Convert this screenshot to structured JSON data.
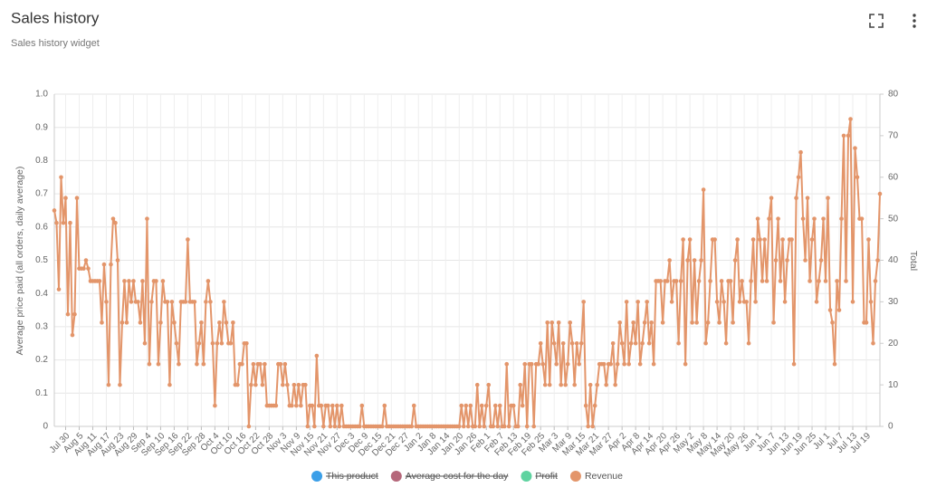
{
  "header": {
    "title": "Sales history",
    "subtitle": "Sales history widget"
  },
  "chart_data": {
    "type": "line",
    "y_label": "Average price paid (all orders, daily average)",
    "y2_label": "Total",
    "ylim": [
      0,
      1
    ],
    "yticks": [
      0,
      0.1,
      0.2,
      0.3,
      0.4,
      0.5,
      0.6,
      0.7,
      0.8,
      0.9,
      {
        "value": 1,
        "label": "1.0"
      }
    ],
    "y2lim": [
      0,
      80
    ],
    "y2ticks": [
      0,
      10,
      20,
      30,
      40,
      50,
      60,
      70,
      80
    ],
    "grid": true,
    "legend": "bottom",
    "categories": [
      null,
      null,
      null,
      null,
      null,
      "Jul 30",
      null,
      null,
      null,
      null,
      null,
      "Aug 5",
      null,
      null,
      null,
      null,
      null,
      "Aug 11",
      null,
      null,
      null,
      null,
      null,
      "Aug 17",
      null,
      null,
      null,
      null,
      null,
      "Aug 23",
      null,
      null,
      null,
      null,
      null,
      "Aug 29",
      null,
      null,
      null,
      null,
      null,
      "Sep 4",
      null,
      null,
      null,
      null,
      null,
      "Sep 10",
      null,
      null,
      null,
      null,
      null,
      "Sep 16",
      null,
      null,
      null,
      null,
      null,
      "Sep 22",
      null,
      null,
      null,
      null,
      null,
      "Sep 28",
      null,
      null,
      null,
      null,
      null,
      "Oct 4",
      null,
      null,
      null,
      null,
      null,
      "Oct 10",
      null,
      null,
      null,
      null,
      null,
      "Oct 16",
      null,
      null,
      null,
      null,
      null,
      "Oct 22",
      null,
      null,
      null,
      null,
      null,
      "Oct 28",
      null,
      null,
      null,
      null,
      null,
      "Nov 3",
      null,
      null,
      null,
      null,
      null,
      "Nov 9",
      null,
      null,
      null,
      null,
      null,
      "Nov 15",
      null,
      null,
      null,
      null,
      null,
      "Nov 21",
      null,
      null,
      null,
      null,
      null,
      "Nov 27",
      null,
      null,
      null,
      null,
      null,
      "Dec 3",
      null,
      null,
      null,
      null,
      null,
      "Dec 9",
      null,
      null,
      null,
      null,
      null,
      "Dec 15",
      null,
      null,
      null,
      null,
      null,
      "Dec 21",
      null,
      null,
      null,
      null,
      null,
      "Dec 27",
      null,
      null,
      null,
      null,
      null,
      "Jan 2",
      null,
      null,
      null,
      null,
      null,
      "Jan 8",
      null,
      null,
      null,
      null,
      null,
      "Jan 14",
      null,
      null,
      null,
      null,
      null,
      "Jan 20",
      null,
      null,
      null,
      null,
      null,
      "Jan 26",
      null,
      null,
      null,
      null,
      null,
      "Feb 1",
      null,
      null,
      null,
      null,
      null,
      "Feb 7",
      null,
      null,
      null,
      null,
      null,
      "Feb 13",
      null,
      null,
      null,
      null,
      null,
      "Feb 19",
      null,
      null,
      null,
      null,
      null,
      "Feb 25",
      null,
      null,
      null,
      null,
      null,
      "Mar 3",
      null,
      null,
      null,
      null,
      null,
      "Mar 9",
      null,
      null,
      null,
      null,
      null,
      "Mar 15",
      null,
      null,
      null,
      null,
      null,
      "Mar 21",
      null,
      null,
      null,
      null,
      null,
      "Mar 27",
      null,
      null,
      null,
      null,
      null,
      "Apr 2",
      null,
      null,
      null,
      null,
      null,
      "Apr 8",
      null,
      null,
      null,
      null,
      null,
      "Apr 14",
      null,
      null,
      null,
      null,
      null,
      "Apr 20",
      null,
      null,
      null,
      null,
      null,
      "Apr 26",
      null,
      null,
      null,
      null,
      null,
      "May 2",
      null,
      null,
      null,
      null,
      null,
      "May 8",
      null,
      null,
      null,
      null,
      null,
      "May 14",
      null,
      null,
      null,
      null,
      null,
      "May 20",
      null,
      null,
      null,
      null,
      null,
      "May 26",
      null,
      null,
      null,
      null,
      null,
      "Jun 1",
      null,
      null,
      null,
      null,
      null,
      "Jun 7",
      null,
      null,
      null,
      null,
      null,
      "Jun 13",
      null,
      null,
      null,
      null,
      null,
      "Jun 19",
      null,
      null,
      null,
      null,
      null,
      "Jun 25",
      null,
      null,
      null,
      null,
      null,
      "Jul 1",
      null,
      null,
      null,
      null,
      null,
      "Jul 7",
      null,
      null,
      null,
      null,
      null,
      "Jul 13",
      null,
      null,
      null,
      null,
      null,
      "Jul 19",
      null,
      null,
      null,
      null,
      null,
      null
    ],
    "series": [
      {
        "name": "This product",
        "color": "#3b9fe8",
        "hidden": true
      },
      {
        "name": "Average cost for the day",
        "color": "#b5677a",
        "hidden": true
      },
      {
        "name": "Profit",
        "color": "#5fd3a0",
        "hidden": true
      },
      {
        "name": "Revenue",
        "color": "#e3956a",
        "axis": "y2",
        "values": [
          52,
          49,
          33,
          60,
          49,
          55,
          27,
          49,
          22,
          27,
          55,
          38,
          38,
          38,
          40,
          38,
          35,
          35,
          35,
          35,
          35,
          25,
          39,
          30,
          10,
          39,
          50,
          49,
          40,
          10,
          25,
          35,
          25,
          35,
          30,
          35,
          30,
          30,
          25,
          35,
          20,
          50,
          15,
          30,
          35,
          35,
          15,
          25,
          35,
          30,
          30,
          10,
          30,
          25,
          20,
          15,
          30,
          30,
          30,
          45,
          30,
          30,
          30,
          15,
          20,
          25,
          15,
          30,
          35,
          30,
          20,
          5,
          20,
          25,
          20,
          30,
          25,
          20,
          20,
          25,
          10,
          10,
          15,
          15,
          20,
          20,
          0,
          10,
          15,
          10,
          15,
          15,
          10,
          15,
          5,
          5,
          5,
          5,
          5,
          15,
          15,
          10,
          15,
          10,
          5,
          5,
          10,
          5,
          10,
          5,
          10,
          10,
          0,
          5,
          5,
          0,
          17,
          5,
          5,
          0,
          5,
          5,
          0,
          5,
          0,
          5,
          0,
          5,
          0,
          0,
          0,
          0,
          0,
          0,
          0,
          0,
          5,
          0,
          0,
          0,
          0,
          0,
          0,
          0,
          0,
          0,
          5,
          0,
          0,
          0,
          0,
          0,
          0,
          0,
          0,
          0,
          0,
          0,
          0,
          5,
          0,
          0,
          0,
          0,
          0,
          0,
          0,
          0,
          0,
          0,
          0,
          0,
          0,
          0,
          0,
          0,
          0,
          0,
          0,
          0,
          5,
          0,
          5,
          0,
          5,
          0,
          0,
          10,
          0,
          5,
          0,
          5,
          10,
          0,
          0,
          5,
          0,
          5,
          0,
          0,
          15,
          0,
          5,
          5,
          0,
          0,
          10,
          5,
          15,
          0,
          15,
          15,
          0,
          15,
          15,
          20,
          15,
          10,
          25,
          10,
          25,
          20,
          15,
          25,
          10,
          20,
          10,
          15,
          25,
          20,
          10,
          20,
          15,
          20,
          30,
          5,
          0,
          10,
          0,
          5,
          10,
          15,
          15,
          15,
          10,
          15,
          15,
          20,
          10,
          15,
          25,
          20,
          15,
          30,
          15,
          20,
          25,
          20,
          30,
          15,
          20,
          25,
          30,
          20,
          25,
          15,
          35,
          35,
          35,
          25,
          35,
          35,
          40,
          30,
          35,
          35,
          20,
          35,
          45,
          15,
          40,
          45,
          25,
          40,
          25,
          35,
          40,
          57,
          20,
          25,
          35,
          45,
          45,
          30,
          25,
          35,
          30,
          20,
          35,
          35,
          25,
          40,
          45,
          30,
          35,
          30,
          30,
          20,
          35,
          45,
          30,
          50,
          45,
          35,
          45,
          35,
          50,
          55,
          25,
          40,
          50,
          35,
          45,
          30,
          40,
          45,
          45,
          15,
          55,
          60,
          66,
          50,
          40,
          55,
          35,
          45,
          50,
          30,
          35,
          40,
          50,
          35,
          55,
          28,
          25,
          15,
          35,
          28,
          50,
          70,
          35,
          70,
          74,
          30,
          67,
          60,
          50,
          50,
          25,
          25,
          45,
          30,
          20,
          35,
          40,
          56
        ]
      }
    ]
  }
}
